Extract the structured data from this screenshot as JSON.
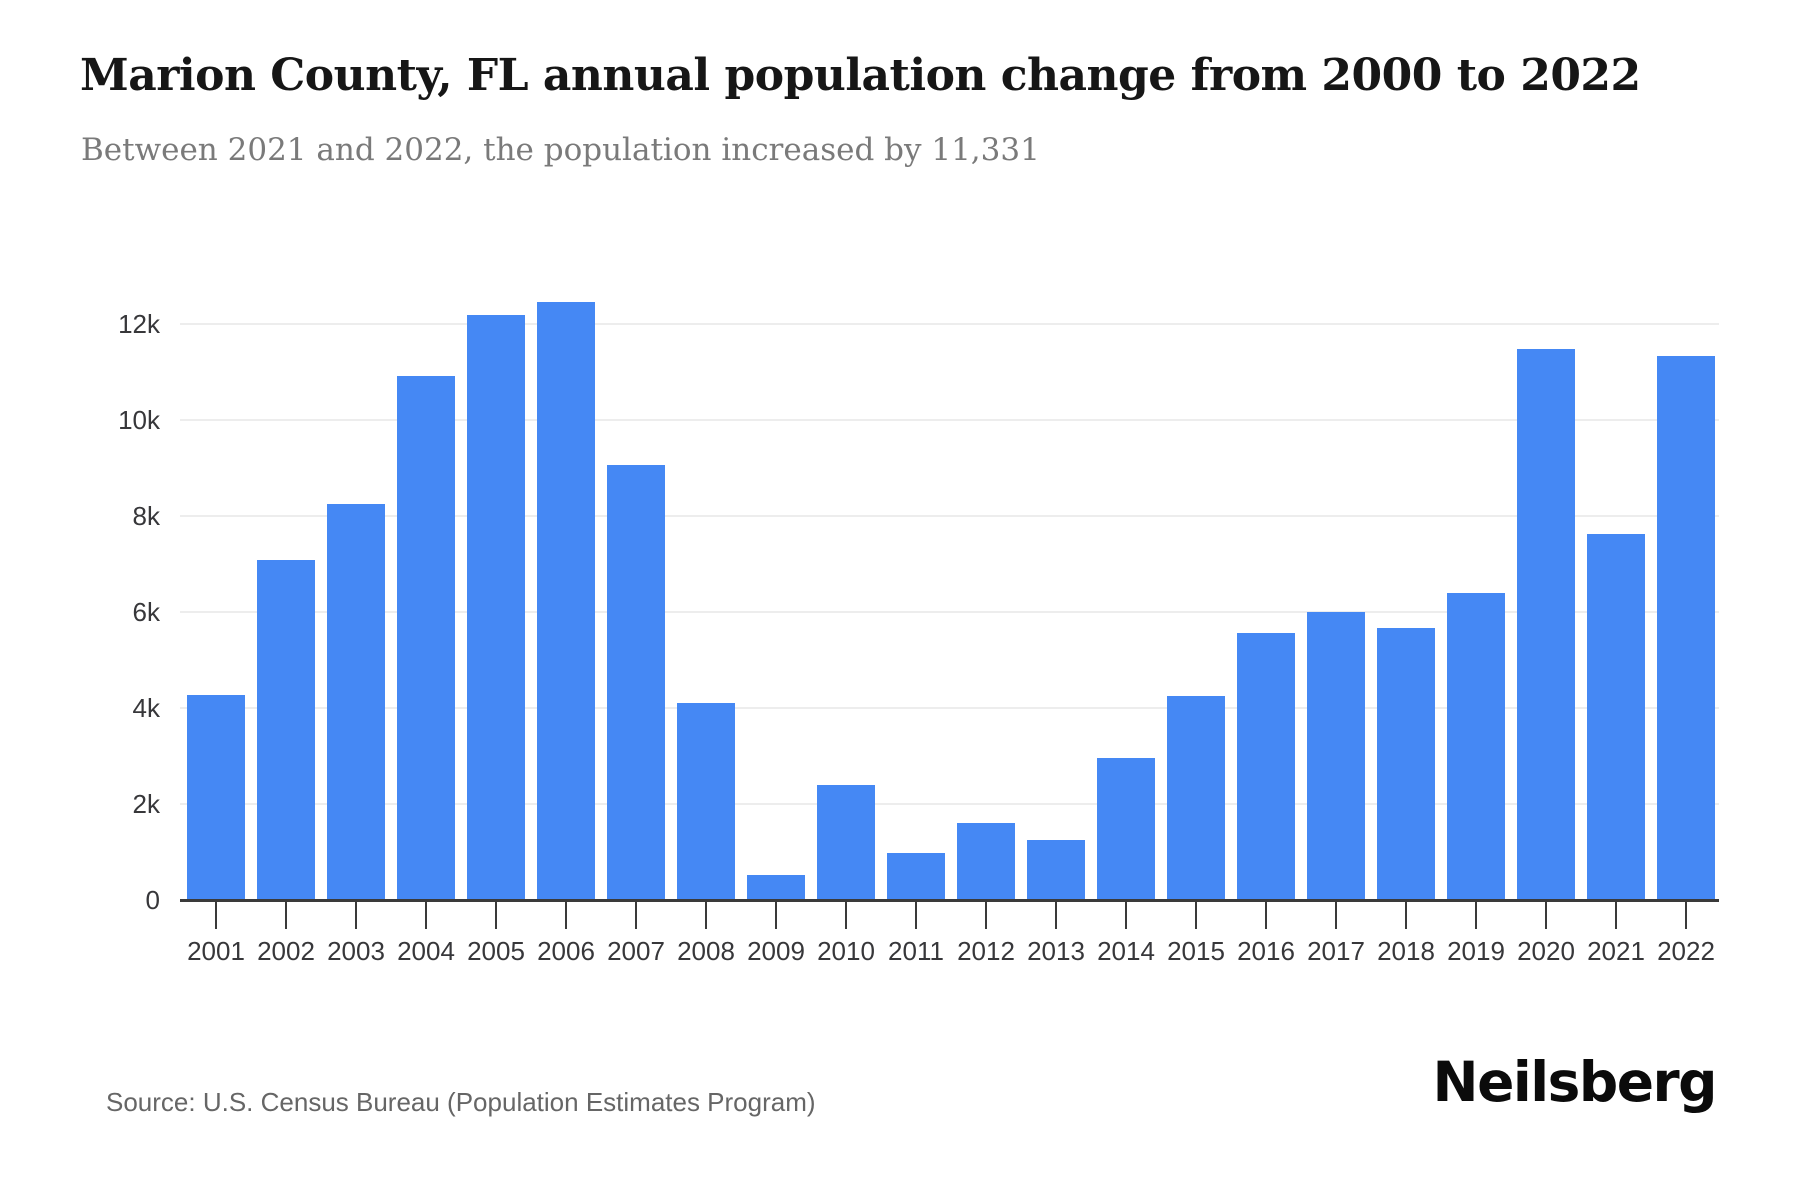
{
  "header": {
    "title": "Marion County, FL annual population change from 2000 to 2022",
    "subtitle": "Between 2021 and 2022, the population increased by 11,331"
  },
  "footer": {
    "source": "Source: U.S. Census Bureau (Population Estimates Program)",
    "brand": "Neilsberg"
  },
  "chart_data": {
    "type": "bar",
    "title": "Marion County, FL annual population change from 2000 to 2022",
    "subtitle": "Between 2021 and 2022, the population increased by 11,331",
    "xlabel": "",
    "ylabel": "",
    "categories": [
      "2001",
      "2002",
      "2003",
      "2004",
      "2005",
      "2006",
      "2007",
      "2008",
      "2009",
      "2010",
      "2011",
      "2012",
      "2013",
      "2014",
      "2015",
      "2016",
      "2017",
      "2018",
      "2019",
      "2020",
      "2021",
      "2022"
    ],
    "values": [
      4270,
      7080,
      8240,
      10920,
      12190,
      12460,
      9060,
      4110,
      520,
      2390,
      970,
      1600,
      1250,
      2960,
      4240,
      5570,
      5990,
      5670,
      6390,
      11480,
      7620,
      11331
    ],
    "ylim": [
      0,
      12900
    ],
    "yticks": [
      {
        "value": 0,
        "label": "0"
      },
      {
        "value": 2000,
        "label": "2k"
      },
      {
        "value": 4000,
        "label": "4k"
      },
      {
        "value": 6000,
        "label": "6k"
      },
      {
        "value": 8000,
        "label": "8k"
      },
      {
        "value": 10000,
        "label": "10k"
      },
      {
        "value": 12000,
        "label": "12k"
      }
    ],
    "grid": true,
    "legend": false,
    "colors": {
      "bar": "#4588F4",
      "axis": "#3a3a3a",
      "gridline": "#ededed",
      "tick_label": "#37373a",
      "title": "#161616",
      "subtitle": "#7a7a7a",
      "source": "#666666",
      "brand": "#0b0b0b"
    }
  }
}
